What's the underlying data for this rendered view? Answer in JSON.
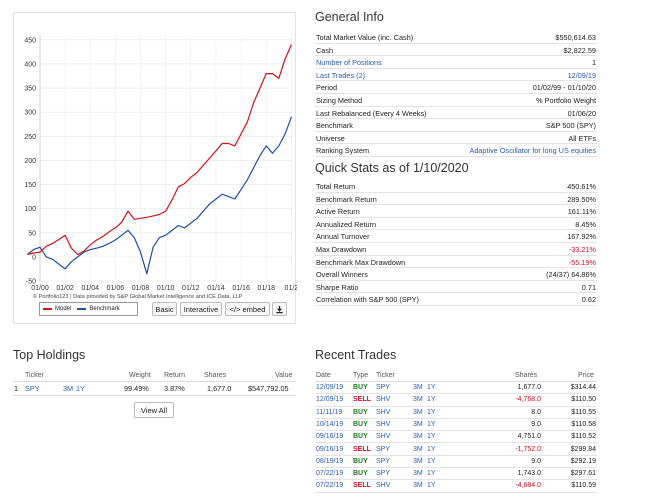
{
  "chart": {
    "credit": "© Portfolio123 | Data provided by S&P Global Market Intelligence and ICE Data, LLP",
    "buttons": {
      "basic": "Basic",
      "interactive": "Interactive",
      "embed": "</> embed"
    },
    "colors": {
      "model": "#d0121b",
      "benchmark": "#1f4fa3"
    }
  },
  "chart_data": {
    "type": "line",
    "title": "",
    "xlabel": "",
    "ylabel": "",
    "ylim": [
      -50,
      460
    ],
    "xlim": [
      2000.0,
      2020.05
    ],
    "yticks": [
      450,
      400,
      350,
      300,
      250,
      200,
      150,
      100,
      50,
      0,
      -50
    ],
    "xticks": [
      {
        "label": "01/00",
        "x": 2000
      },
      {
        "label": "01/02",
        "x": 2002
      },
      {
        "label": "01/04",
        "x": 2004
      },
      {
        "label": "01/06",
        "x": 2006
      },
      {
        "label": "01/08",
        "x": 2008
      },
      {
        "label": "01/10",
        "x": 2010
      },
      {
        "label": "01/12",
        "x": 2012
      },
      {
        "label": "01/14",
        "x": 2014
      },
      {
        "label": "01/16",
        "x": 2016
      },
      {
        "label": "01/18",
        "x": 2018
      },
      {
        "label": "01/2",
        "x": 2020
      }
    ],
    "grid": true,
    "legend": "bottom-left",
    "series": [
      {
        "name": "Model",
        "color": "#d0121b",
        "x": [
          1999.0,
          1999.5,
          2000.0,
          2000.5,
          2001.0,
          2001.5,
          2002.0,
          2002.5,
          2003.0,
          2003.5,
          2004.0,
          2004.5,
          2005.0,
          2005.5,
          2006.0,
          2006.5,
          2007.0,
          2007.5,
          2008.0,
          2008.5,
          2009.0,
          2009.5,
          2010.0,
          2010.5,
          2011.0,
          2011.5,
          2012.0,
          2012.5,
          2013.0,
          2013.5,
          2014.0,
          2014.5,
          2015.0,
          2015.5,
          2016.0,
          2016.5,
          2017.0,
          2017.5,
          2018.0,
          2018.5,
          2019.0,
          2019.5,
          2020.0
        ],
        "values": [
          5,
          8,
          10,
          22,
          28,
          36,
          45,
          18,
          5,
          12,
          25,
          35,
          42,
          52,
          60,
          72,
          95,
          78,
          80,
          82,
          85,
          88,
          95,
          118,
          145,
          152,
          165,
          175,
          190,
          205,
          220,
          235,
          235,
          230,
          255,
          280,
          320,
          350,
          380,
          380,
          370,
          410,
          440
        ]
      },
      {
        "name": "Benchmark",
        "color": "#1f4fa3",
        "x": [
          1999.0,
          1999.5,
          2000.0,
          2000.5,
          2001.0,
          2001.5,
          2002.0,
          2002.5,
          2003.0,
          2003.5,
          2004.0,
          2004.5,
          2005.0,
          2005.5,
          2006.0,
          2006.5,
          2007.0,
          2007.5,
          2008.0,
          2008.5,
          2009.0,
          2009.5,
          2010.0,
          2010.5,
          2011.0,
          2011.5,
          2012.0,
          2012.5,
          2013.0,
          2013.5,
          2014.0,
          2014.5,
          2015.0,
          2015.5,
          2016.0,
          2016.5,
          2017.0,
          2017.5,
          2018.0,
          2018.5,
          2019.0,
          2019.5,
          2020.0
        ],
        "values": [
          5,
          15,
          20,
          0,
          -5,
          -15,
          -25,
          -10,
          0,
          10,
          15,
          18,
          22,
          28,
          35,
          45,
          55,
          40,
          10,
          -35,
          20,
          40,
          45,
          55,
          65,
          60,
          70,
          80,
          95,
          110,
          120,
          130,
          125,
          120,
          140,
          160,
          185,
          210,
          230,
          215,
          230,
          255,
          290
        ]
      }
    ]
  },
  "general_info": {
    "title": "General Info",
    "rows": [
      {
        "label": "Total Market Value (inc. Cash)",
        "value": "$550,614.63",
        "label_link": false,
        "value_link": false
      },
      {
        "label": "Cash",
        "value": "$2,822.59",
        "label_link": false,
        "value_link": false
      },
      {
        "label": "Number of Positions",
        "value": "1",
        "label_link": true,
        "value_link": false
      },
      {
        "label": "Last Trades (2)",
        "value": "12/09/19",
        "label_link": true,
        "value_link": true
      },
      {
        "label": "Period",
        "value": "01/02/99 - 01/10/20",
        "label_link": false,
        "value_link": false
      },
      {
        "label": "Sizing Method",
        "value": "% Portfolio Weight",
        "label_link": false,
        "value_link": false
      },
      {
        "label": "Last Rebalanced (Every 4 Weeks)",
        "value": "01/06/20",
        "label_link": false,
        "value_link": false
      },
      {
        "label": "Benchmark",
        "value": "S&P 500 (SPY)",
        "label_link": false,
        "value_link": false
      },
      {
        "label": "Universe",
        "value": "All ETFs",
        "label_link": false,
        "value_link": false
      },
      {
        "label": "Ranking System",
        "value": "Adaptive Oscillator for long US equities",
        "label_link": false,
        "value_link": true
      }
    ]
  },
  "quick_stats": {
    "title": "Quick Stats as of 1/10/2020",
    "rows": [
      {
        "label": "Total Return",
        "value": "450.61%",
        "neg": false
      },
      {
        "label": "Benchmark Return",
        "value": "289.50%",
        "neg": false
      },
      {
        "label": "Active Return",
        "value": "161.11%",
        "neg": false
      },
      {
        "label": "Annualized Return",
        "value": "8.45%",
        "neg": false
      },
      {
        "label": "Annual Turnover",
        "value": "167.92%",
        "neg": false
      },
      {
        "label": "Max Drawdown",
        "value": "-33.21%",
        "neg": true
      },
      {
        "label": "Benchmark Max Drawdown",
        "value": "-55.19%",
        "neg": true
      },
      {
        "label": "Overall Winners",
        "value": "(24/37) 64.86%",
        "neg": false
      },
      {
        "label": "Sharpe Ratio",
        "value": "0.71",
        "neg": false
      },
      {
        "label": "Correlation with S&P 500 (SPY)",
        "value": "0.62",
        "neg": false
      }
    ]
  },
  "top_holdings": {
    "title": "Top Holdings",
    "headers": {
      "ticker": "Ticker",
      "weight": "Weight",
      "return": "Return",
      "shares": "Shares",
      "value": "Value"
    },
    "rows": [
      {
        "num": "1",
        "ticker": "SPY",
        "p1": "3M",
        "p2": "1Y",
        "weight": "99.49%",
        "return": "3.87%",
        "shares": "1,677.0",
        "value": "$547,792.05"
      }
    ],
    "view_all": "View All"
  },
  "recent_trades": {
    "title": "Recent Trades",
    "headers": {
      "date": "Date",
      "type": "Type",
      "ticker": "Ticker",
      "shares": "Shares",
      "price": "Price"
    },
    "rows": [
      {
        "date": "12/09/19",
        "type": "BUY",
        "ticker": "SPY",
        "p1": "3M",
        "p2": "1Y",
        "shares": "1,677.0",
        "price": "$314.44",
        "neg": false
      },
      {
        "date": "12/09/19",
        "type": "SELL",
        "ticker": "SHV",
        "p1": "3M",
        "p2": "1Y",
        "shares": "-4,768.0",
        "price": "$110.50",
        "neg": true
      },
      {
        "date": "11/11/19",
        "type": "BUY",
        "ticker": "SHV",
        "p1": "3M",
        "p2": "1Y",
        "shares": "8.0",
        "price": "$110.55",
        "neg": false
      },
      {
        "date": "10/14/19",
        "type": "BUY",
        "ticker": "SHV",
        "p1": "3M",
        "p2": "1Y",
        "shares": "9.0",
        "price": "$110.58",
        "neg": false
      },
      {
        "date": "09/16/19",
        "type": "BUY",
        "ticker": "SHV",
        "p1": "3M",
        "p2": "1Y",
        "shares": "4,751.0",
        "price": "$110.52",
        "neg": false
      },
      {
        "date": "09/16/19",
        "type": "SELL",
        "ticker": "SPY",
        "p1": "3M",
        "p2": "1Y",
        "shares": "-1,752.0",
        "price": "$299.84",
        "neg": true
      },
      {
        "date": "08/19/19",
        "type": "BUY",
        "ticker": "SPY",
        "p1": "3M",
        "p2": "1Y",
        "shares": "9.0",
        "price": "$292.19",
        "neg": false
      },
      {
        "date": "07/22/19",
        "type": "BUY",
        "ticker": "SPY",
        "p1": "3M",
        "p2": "1Y",
        "shares": "1,743.0",
        "price": "$297.61",
        "neg": false
      },
      {
        "date": "07/22/19",
        "type": "SELL",
        "ticker": "SHV",
        "p1": "3M",
        "p2": "1Y",
        "shares": "-4,684.0",
        "price": "$110.59",
        "neg": true
      }
    ]
  }
}
